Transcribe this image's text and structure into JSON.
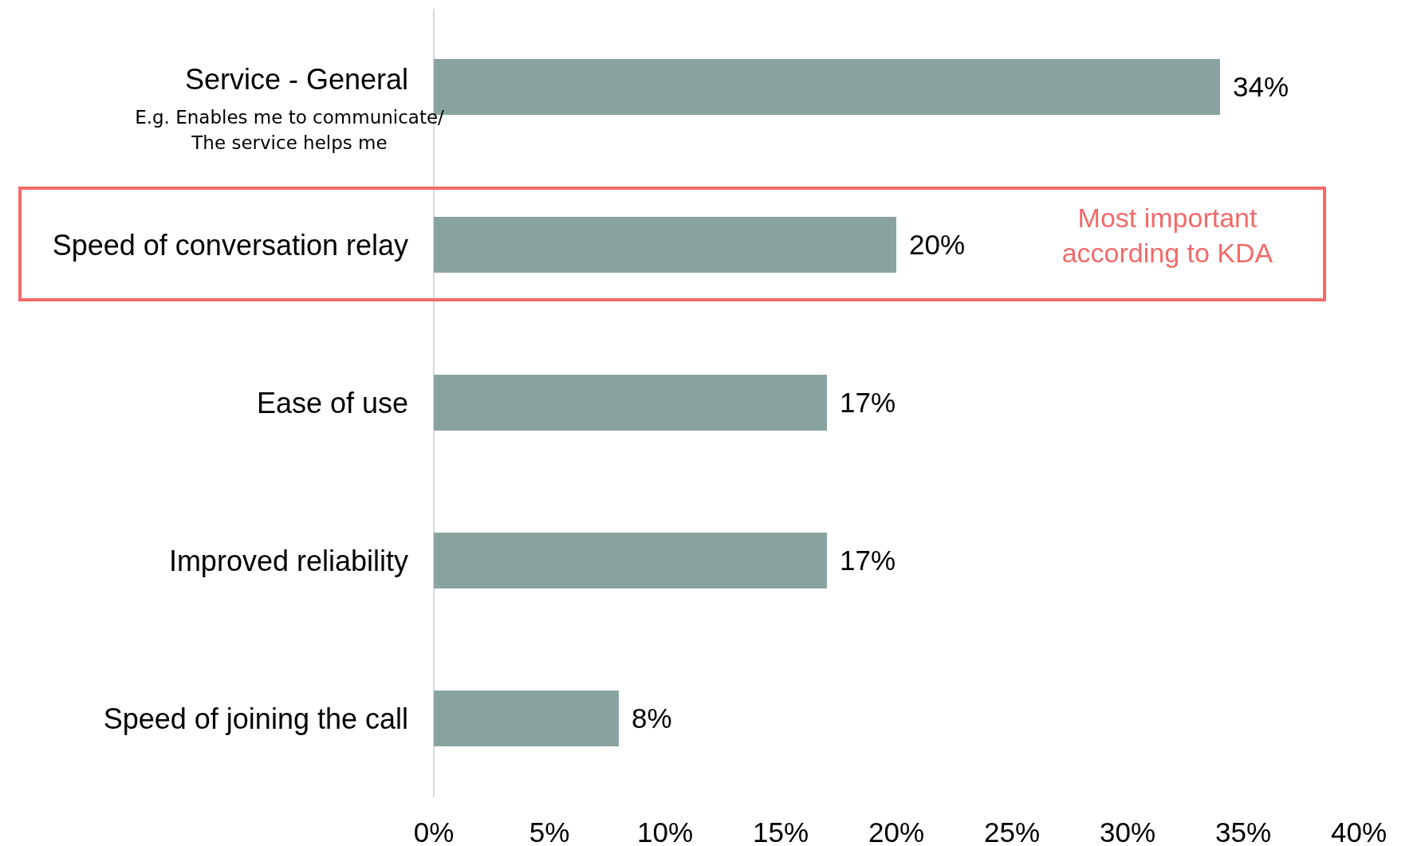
{
  "chart_data": {
    "type": "bar",
    "orientation": "horizontal",
    "categories": [
      "Service - General",
      "Speed of conversation relay",
      "Ease of use",
      "Improved reliability",
      "Speed of joining the call"
    ],
    "values": [
      34,
      20,
      17,
      17,
      8
    ],
    "value_labels": [
      "34%",
      "20%",
      "17%",
      "17%",
      "8%"
    ],
    "color": "#89a3a0",
    "xlim": [
      0,
      40
    ],
    "xticks": [
      {
        "value": 0,
        "label": "0%"
      },
      {
        "value": 5,
        "label": "5%"
      },
      {
        "value": 10,
        "label": "10%"
      },
      {
        "value": 15,
        "label": "15%"
      },
      {
        "value": 20,
        "label": "20%"
      },
      {
        "value": 25,
        "label": "25%"
      },
      {
        "value": 30,
        "label": "30%"
      },
      {
        "value": 35,
        "label": "35%"
      },
      {
        "value": 40,
        "label": "40%"
      }
    ],
    "annotations": [
      "E.g. Enables  me to communicate/\nThe service helps me",
      "Most important\naccording to KDA"
    ]
  }
}
